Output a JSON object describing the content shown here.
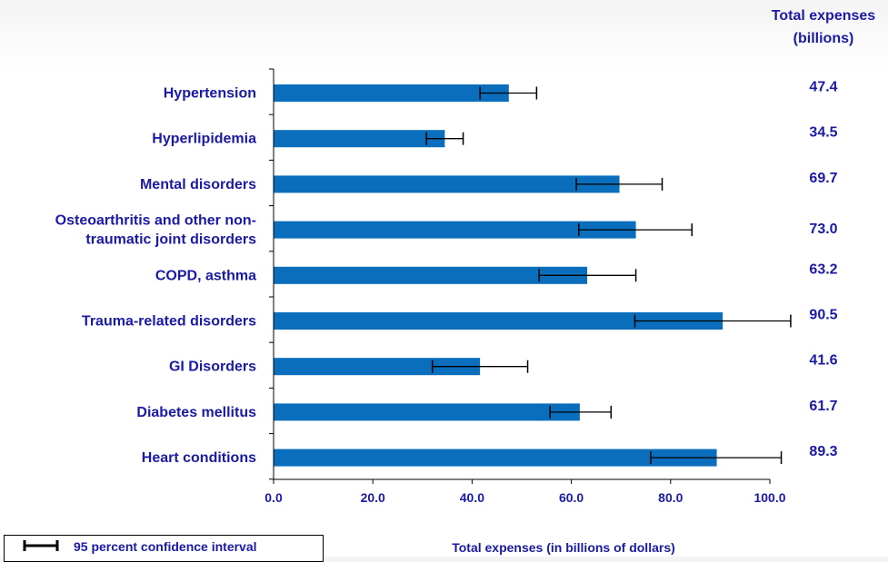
{
  "chart_data": {
    "type": "bar",
    "orientation": "horizontal",
    "categories": [
      "Hypertension",
      "Hyperlipidemia",
      "Mental disorders",
      "Osteoarthritis and other non-traumatic joint disorders",
      "COPD, asthma",
      "Trauma-related disorders",
      "GI Disorders",
      "Diabetes mellitus",
      "Heart conditions"
    ],
    "category_lines": [
      [
        "Hypertension"
      ],
      [
        "Hyperlipidemia"
      ],
      [
        "Mental disorders"
      ],
      [
        "Osteoarthritis and other non-",
        "traumatic joint disorders"
      ],
      [
        "COPD, asthma"
      ],
      [
        "Trauma-related disorders"
      ],
      [
        "GI Disorders"
      ],
      [
        "Diabetes mellitus"
      ],
      [
        "Heart conditions"
      ]
    ],
    "values": [
      47.4,
      34.5,
      69.7,
      73.0,
      63.2,
      90.5,
      41.6,
      61.7,
      89.3
    ],
    "value_labels": [
      "47.4",
      "34.5",
      "69.7",
      "73.0",
      "63.2",
      "90.5",
      "41.6",
      "61.7",
      "89.3"
    ],
    "ci_low": [
      41.6,
      30.8,
      61.0,
      61.5,
      53.5,
      72.8,
      32.0,
      55.7,
      76.0
    ],
    "ci_high": [
      53.0,
      38.2,
      78.3,
      84.3,
      73.0,
      104.2,
      51.2,
      68.0,
      102.3
    ],
    "xlim": [
      0,
      100
    ],
    "xticks": [
      0,
      20,
      40,
      60,
      80,
      100
    ],
    "xtick_labels": [
      "0.0",
      "20.0",
      "40.0",
      "60.0",
      "80.0",
      "100.0"
    ],
    "xlabel": "Total expenses (in billions of dollars)",
    "value_column_header": [
      "Total expenses",
      "(billions)"
    ],
    "legend": "95 percent confidence interval",
    "bar_color": "#0a6ebd",
    "text_color": "#1a1aa6"
  }
}
